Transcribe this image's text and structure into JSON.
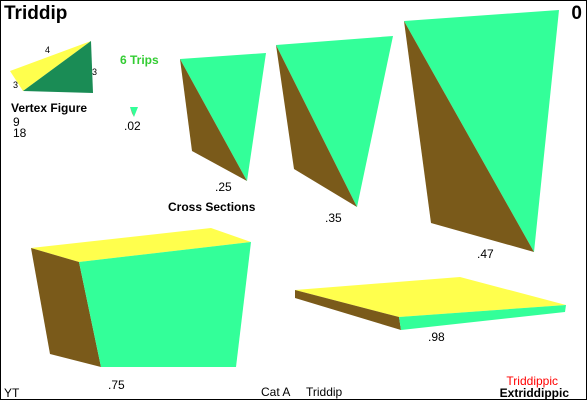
{
  "title": "Triddip",
  "counter": "0",
  "vertex_figure": {
    "label": "Vertex Figure",
    "edge_labels": [
      "4",
      "3",
      "3"
    ],
    "numbers": [
      "9",
      "18"
    ]
  },
  "trips_label": "6 Trips",
  "cross_sections_label": "Cross Sections",
  "sections": [
    ".02",
    ".25",
    ".35",
    ".47",
    ".75",
    ".98"
  ],
  "footer": {
    "left": "YT",
    "category": "Cat A",
    "name": "Triddip",
    "right_red": "Triddippic",
    "right_bold": "Extriddippic"
  },
  "colors": {
    "green": "#33ff99",
    "brown": "#7a5a1a",
    "yellow": "#ffff4d",
    "dark_green": "#1a8c55",
    "trips_green": "#33cc33",
    "red": "#ff0000"
  }
}
